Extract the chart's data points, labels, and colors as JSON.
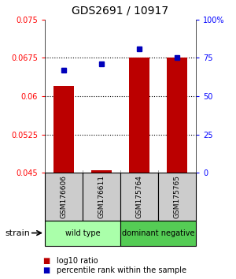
{
  "title": "GDS2691 / 10917",
  "samples": [
    "GSM176606",
    "GSM176611",
    "GSM175764",
    "GSM175765"
  ],
  "log10_ratio": [
    0.062,
    0.0455,
    0.0675,
    0.0675
  ],
  "percentile_rank": [
    67,
    71,
    81,
    75
  ],
  "ylim_left": [
    0.045,
    0.075
  ],
  "ylim_right": [
    0,
    100
  ],
  "yticks_left": [
    0.045,
    0.0525,
    0.06,
    0.0675,
    0.075
  ],
  "yticks_right": [
    0,
    25,
    50,
    75,
    100
  ],
  "ytick_labels_left": [
    "0.045",
    "0.0525",
    "0.06",
    "0.0675",
    "0.075"
  ],
  "ytick_labels_right": [
    "0",
    "25",
    "50",
    "75",
    "100%"
  ],
  "hlines": [
    0.0525,
    0.06,
    0.0675
  ],
  "bar_color": "#bb0000",
  "scatter_color": "#0000bb",
  "bar_width": 0.55,
  "groups": [
    {
      "label": "wild type",
      "samples": [
        0,
        1
      ],
      "color": "#aaffaa"
    },
    {
      "label": "dominant negative",
      "samples": [
        2,
        3
      ],
      "color": "#55cc55"
    }
  ],
  "legend_items": [
    {
      "color": "#bb0000",
      "label": "log10 ratio"
    },
    {
      "color": "#0000bb",
      "label": "percentile rank within the sample"
    }
  ],
  "base_value": 0.045,
  "strain_label": "strain",
  "bg_color": "#ffffff"
}
